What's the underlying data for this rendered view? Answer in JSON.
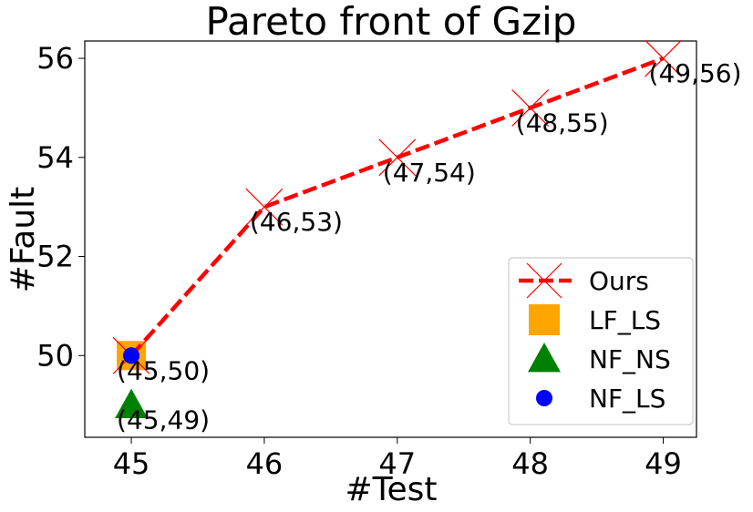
{
  "chart_data": {
    "type": "scatter",
    "title": "Pareto front of Gzip",
    "xlabel": "#Test",
    "ylabel": "#Fault",
    "xlim": [
      44.65,
      49.25
    ],
    "ylim": [
      48.35,
      56.35
    ],
    "xticks": [
      45,
      46,
      47,
      48,
      49
    ],
    "yticks": [
      50,
      52,
      54,
      56
    ],
    "grid": false,
    "legend_position": "bottom-right",
    "series": [
      {
        "name": "Ours",
        "marker": "x",
        "line": "dashed",
        "color": "#ff0000",
        "points": [
          {
            "x": 45,
            "y": 50
          },
          {
            "x": 46,
            "y": 53
          },
          {
            "x": 47,
            "y": 54
          },
          {
            "x": 48,
            "y": 55
          },
          {
            "x": 49,
            "y": 56
          }
        ]
      },
      {
        "name": "LF_LS",
        "marker": "square",
        "color": "#ffa500",
        "points": [
          {
            "x": 45,
            "y": 50
          }
        ]
      },
      {
        "name": "NF_NS",
        "marker": "triangle",
        "color": "#008000",
        "points": [
          {
            "x": 45,
            "y": 49
          }
        ]
      },
      {
        "name": "NF_LS",
        "marker": "circle",
        "color": "#0000ff",
        "points": [
          {
            "x": 45,
            "y": 50
          }
        ]
      }
    ],
    "annotations": [
      {
        "text": "(45,50)",
        "x": 45,
        "y": 50
      },
      {
        "text": "(45,49)",
        "x": 45,
        "y": 49
      },
      {
        "text": "(46,53)",
        "x": 46,
        "y": 53
      },
      {
        "text": "(47,54)",
        "x": 47,
        "y": 54
      },
      {
        "text": "(48,55)",
        "x": 48,
        "y": 55
      },
      {
        "text": "(49,56)",
        "x": 49,
        "y": 56
      }
    ]
  }
}
